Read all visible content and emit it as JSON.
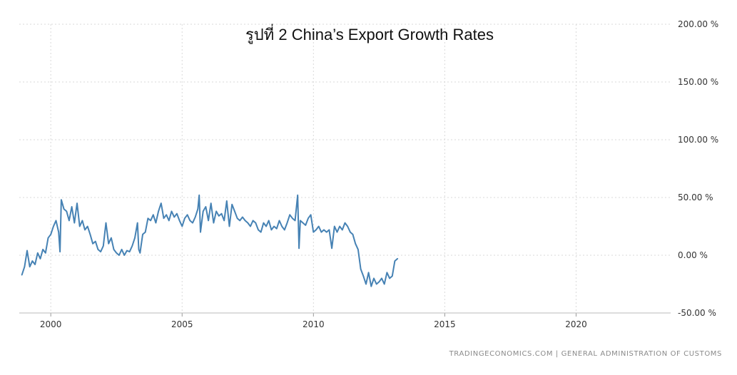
{
  "chart_data": {
    "type": "line",
    "title": "รูปที่ 2 China’s Export Growth Rates",
    "source": "TRADINGECONOMICS.COM  |  GENERAL ADMINISTRATION OF CUSTOMS",
    "xlabel": "",
    "ylabel": "",
    "xlim": [
      1998.8,
      2023.6
    ],
    "ylim": [
      -50,
      200
    ],
    "x_ticks": [
      2000,
      2005,
      2010,
      2015,
      2020
    ],
    "x_tick_labels": [
      "2000",
      "2005",
      "2010",
      "2015",
      "2020"
    ],
    "y_ticks": [
      -50,
      0,
      50,
      100,
      150,
      200
    ],
    "y_tick_labels": [
      "-50.00 %",
      "0.00 %",
      "50.00 %",
      "100.00 %",
      "150.00 %",
      "200.00 %"
    ],
    "grid": true,
    "line_color": "#4682b4",
    "series": [
      {
        "name": "",
        "points": [
          [
            1998.9,
            -17
          ],
          [
            1999.0,
            -10
          ],
          [
            1999.1,
            4
          ],
          [
            1999.2,
            -10
          ],
          [
            1999.3,
            -5
          ],
          [
            1999.4,
            -8
          ],
          [
            1999.5,
            2
          ],
          [
            1999.6,
            -3
          ],
          [
            1999.7,
            5
          ],
          [
            1999.8,
            2
          ],
          [
            1999.9,
            15
          ],
          [
            2000.0,
            18
          ],
          [
            2000.1,
            25
          ],
          [
            2000.2,
            30
          ],
          [
            2000.3,
            20
          ],
          [
            2000.35,
            3
          ],
          [
            2000.4,
            48
          ],
          [
            2000.5,
            40
          ],
          [
            2000.6,
            38
          ],
          [
            2000.7,
            30
          ],
          [
            2000.8,
            42
          ],
          [
            2000.9,
            28
          ],
          [
            2001.0,
            45
          ],
          [
            2001.1,
            25
          ],
          [
            2001.2,
            30
          ],
          [
            2001.3,
            22
          ],
          [
            2001.4,
            25
          ],
          [
            2001.5,
            18
          ],
          [
            2001.6,
            10
          ],
          [
            2001.7,
            12
          ],
          [
            2001.8,
            5
          ],
          [
            2001.9,
            3
          ],
          [
            2002.0,
            8
          ],
          [
            2002.1,
            28
          ],
          [
            2002.2,
            10
          ],
          [
            2002.3,
            15
          ],
          [
            2002.4,
            5
          ],
          [
            2002.5,
            2
          ],
          [
            2002.6,
            0
          ],
          [
            2002.7,
            5
          ],
          [
            2002.8,
            0
          ],
          [
            2002.9,
            4
          ],
          [
            2003.0,
            3
          ],
          [
            2003.1,
            8
          ],
          [
            2003.2,
            15
          ],
          [
            2003.3,
            28
          ],
          [
            2003.35,
            5
          ],
          [
            2003.4,
            2
          ],
          [
            2003.5,
            18
          ],
          [
            2003.6,
            20
          ],
          [
            2003.7,
            32
          ],
          [
            2003.8,
            30
          ],
          [
            2003.9,
            35
          ],
          [
            2004.0,
            28
          ],
          [
            2004.1,
            38
          ],
          [
            2004.2,
            45
          ],
          [
            2004.3,
            32
          ],
          [
            2004.4,
            35
          ],
          [
            2004.5,
            30
          ],
          [
            2004.6,
            38
          ],
          [
            2004.7,
            33
          ],
          [
            2004.8,
            36
          ],
          [
            2004.9,
            30
          ],
          [
            2005.0,
            25
          ],
          [
            2005.1,
            32
          ],
          [
            2005.2,
            35
          ],
          [
            2005.3,
            30
          ],
          [
            2005.4,
            28
          ],
          [
            2005.5,
            33
          ],
          [
            2005.6,
            40
          ],
          [
            2005.65,
            52
          ],
          [
            2005.7,
            20
          ],
          [
            2005.8,
            38
          ],
          [
            2005.9,
            42
          ],
          [
            2006.0,
            30
          ],
          [
            2006.1,
            45
          ],
          [
            2006.2,
            28
          ],
          [
            2006.3,
            38
          ],
          [
            2006.4,
            34
          ],
          [
            2006.5,
            36
          ],
          [
            2006.6,
            30
          ],
          [
            2006.7,
            47
          ],
          [
            2006.8,
            25
          ],
          [
            2006.9,
            44
          ],
          [
            2007.0,
            38
          ],
          [
            2007.1,
            32
          ],
          [
            2007.2,
            30
          ],
          [
            2007.3,
            33
          ],
          [
            2007.4,
            30
          ],
          [
            2007.5,
            28
          ],
          [
            2007.6,
            25
          ],
          [
            2007.7,
            30
          ],
          [
            2007.8,
            28
          ],
          [
            2007.9,
            22
          ],
          [
            2008.0,
            20
          ],
          [
            2008.1,
            28
          ],
          [
            2008.2,
            25
          ],
          [
            2008.3,
            30
          ],
          [
            2008.4,
            22
          ],
          [
            2008.5,
            25
          ],
          [
            2008.6,
            23
          ],
          [
            2008.7,
            30
          ],
          [
            2008.8,
            25
          ],
          [
            2008.9,
            22
          ],
          [
            2009.0,
            28
          ],
          [
            2009.1,
            35
          ],
          [
            2009.2,
            32
          ],
          [
            2009.3,
            30
          ],
          [
            2009.4,
            52
          ],
          [
            2009.45,
            6
          ],
          [
            2009.5,
            30
          ],
          [
            2009.6,
            28
          ],
          [
            2009.7,
            26
          ],
          [
            2009.8,
            32
          ],
          [
            2009.9,
            35
          ],
          [
            2010.0,
            20
          ],
          [
            2010.1,
            22
          ],
          [
            2010.2,
            25
          ],
          [
            2010.3,
            20
          ],
          [
            2010.4,
            22
          ],
          [
            2010.5,
            20
          ],
          [
            2010.6,
            22
          ],
          [
            2010.7,
            6
          ],
          [
            2010.8,
            25
          ],
          [
            2010.9,
            20
          ],
          [
            2011.0,
            25
          ],
          [
            2011.1,
            22
          ],
          [
            2011.2,
            28
          ],
          [
            2011.3,
            25
          ],
          [
            2011.4,
            20
          ],
          [
            2011.5,
            18
          ],
          [
            2011.6,
            10
          ],
          [
            2011.7,
            5
          ],
          [
            2011.8,
            -12
          ],
          [
            2011.9,
            -18
          ],
          [
            2012.0,
            -25
          ],
          [
            2012.1,
            -15
          ],
          [
            2012.2,
            -27
          ],
          [
            2012.3,
            -20
          ],
          [
            2012.4,
            -25
          ],
          [
            2012.5,
            -23
          ],
          [
            2012.6,
            -20
          ],
          [
            2012.7,
            -25
          ],
          [
            2012.8,
            -15
          ],
          [
            2012.9,
            -20
          ],
          [
            2013.0,
            -18
          ],
          [
            2013.1,
            -5
          ],
          [
            2013.2,
            -3
          ]
        ]
      }
    ]
  }
}
